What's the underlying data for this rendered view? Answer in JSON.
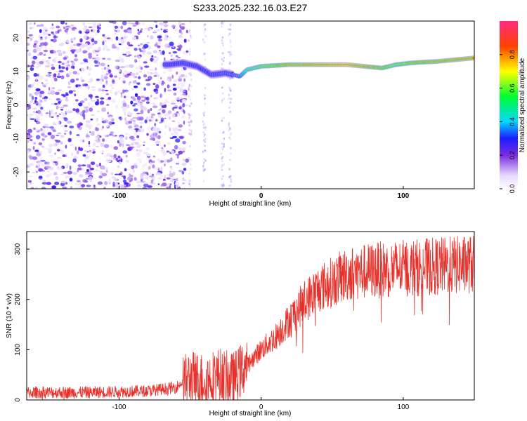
{
  "title": "S233.2025.232.16.03.E27",
  "colors": {
    "snr_line": "#e8302a",
    "ridge": "#d7263d",
    "background_scatter": "#7a2ce0",
    "frame": "#000000"
  },
  "chart_data": [
    {
      "type": "heatmap",
      "name": "spectrogram",
      "xlabel": "Height of straight line (km)",
      "ylabel": "Frequency (Hz)",
      "xlim": [
        -165,
        150
      ],
      "ylim": [
        -25,
        25
      ],
      "xticks": [
        -100,
        0,
        100
      ],
      "yticks": [
        -20,
        -10,
        0,
        10,
        20
      ],
      "colorbar": {
        "label": "Normalized spectral amplitude",
        "range": [
          0,
          1
        ],
        "ticks": [
          0.0,
          0.2,
          0.4,
          0.6,
          0.8
        ],
        "tick_labels": [
          "0.0",
          "0.2",
          "0.4",
          "0.6",
          "0.8"
        ]
      },
      "ridge": {
        "x": [
          -65,
          -55,
          -45,
          -35,
          -25,
          -15,
          -10,
          0,
          20,
          40,
          60,
          85,
          95,
          105,
          125,
          150
        ],
        "frequency": [
          12,
          12.5,
          11.5,
          9,
          9.5,
          8.5,
          10.5,
          11.5,
          12,
          12,
          12,
          11,
          12,
          12.5,
          13,
          14
        ],
        "amplitude": [
          0.25,
          0.35,
          0.3,
          0.35,
          0.4,
          0.45,
          0.6,
          0.7,
          0.85,
          0.9,
          0.95,
          0.8,
          0.7,
          0.8,
          0.85,
          0.9
        ]
      },
      "noise_region": {
        "x_start": -165,
        "x_end": -60,
        "amplitude": [
          0.05,
          0.3
        ]
      }
    },
    {
      "type": "line",
      "name": "snr",
      "xlabel": "Height of straight line (km)",
      "ylabel": "SNR (10 * v/v)",
      "xlim": [
        -165,
        150
      ],
      "ylim": [
        0,
        335
      ],
      "xticks": [
        -100,
        0,
        100
      ],
      "yticks": [
        0,
        100,
        200,
        300
      ],
      "trend": {
        "x": [
          -165,
          -120,
          -80,
          -60,
          -50,
          -40,
          -30,
          -20,
          -10,
          0,
          10,
          20,
          30,
          40,
          50,
          60,
          80,
          100,
          120,
          150
        ],
        "y": [
          15,
          15,
          18,
          25,
          45,
          40,
          50,
          40,
          70,
          100,
          125,
          160,
          195,
          220,
          235,
          250,
          258,
          262,
          265,
          270
        ]
      }
    }
  ]
}
